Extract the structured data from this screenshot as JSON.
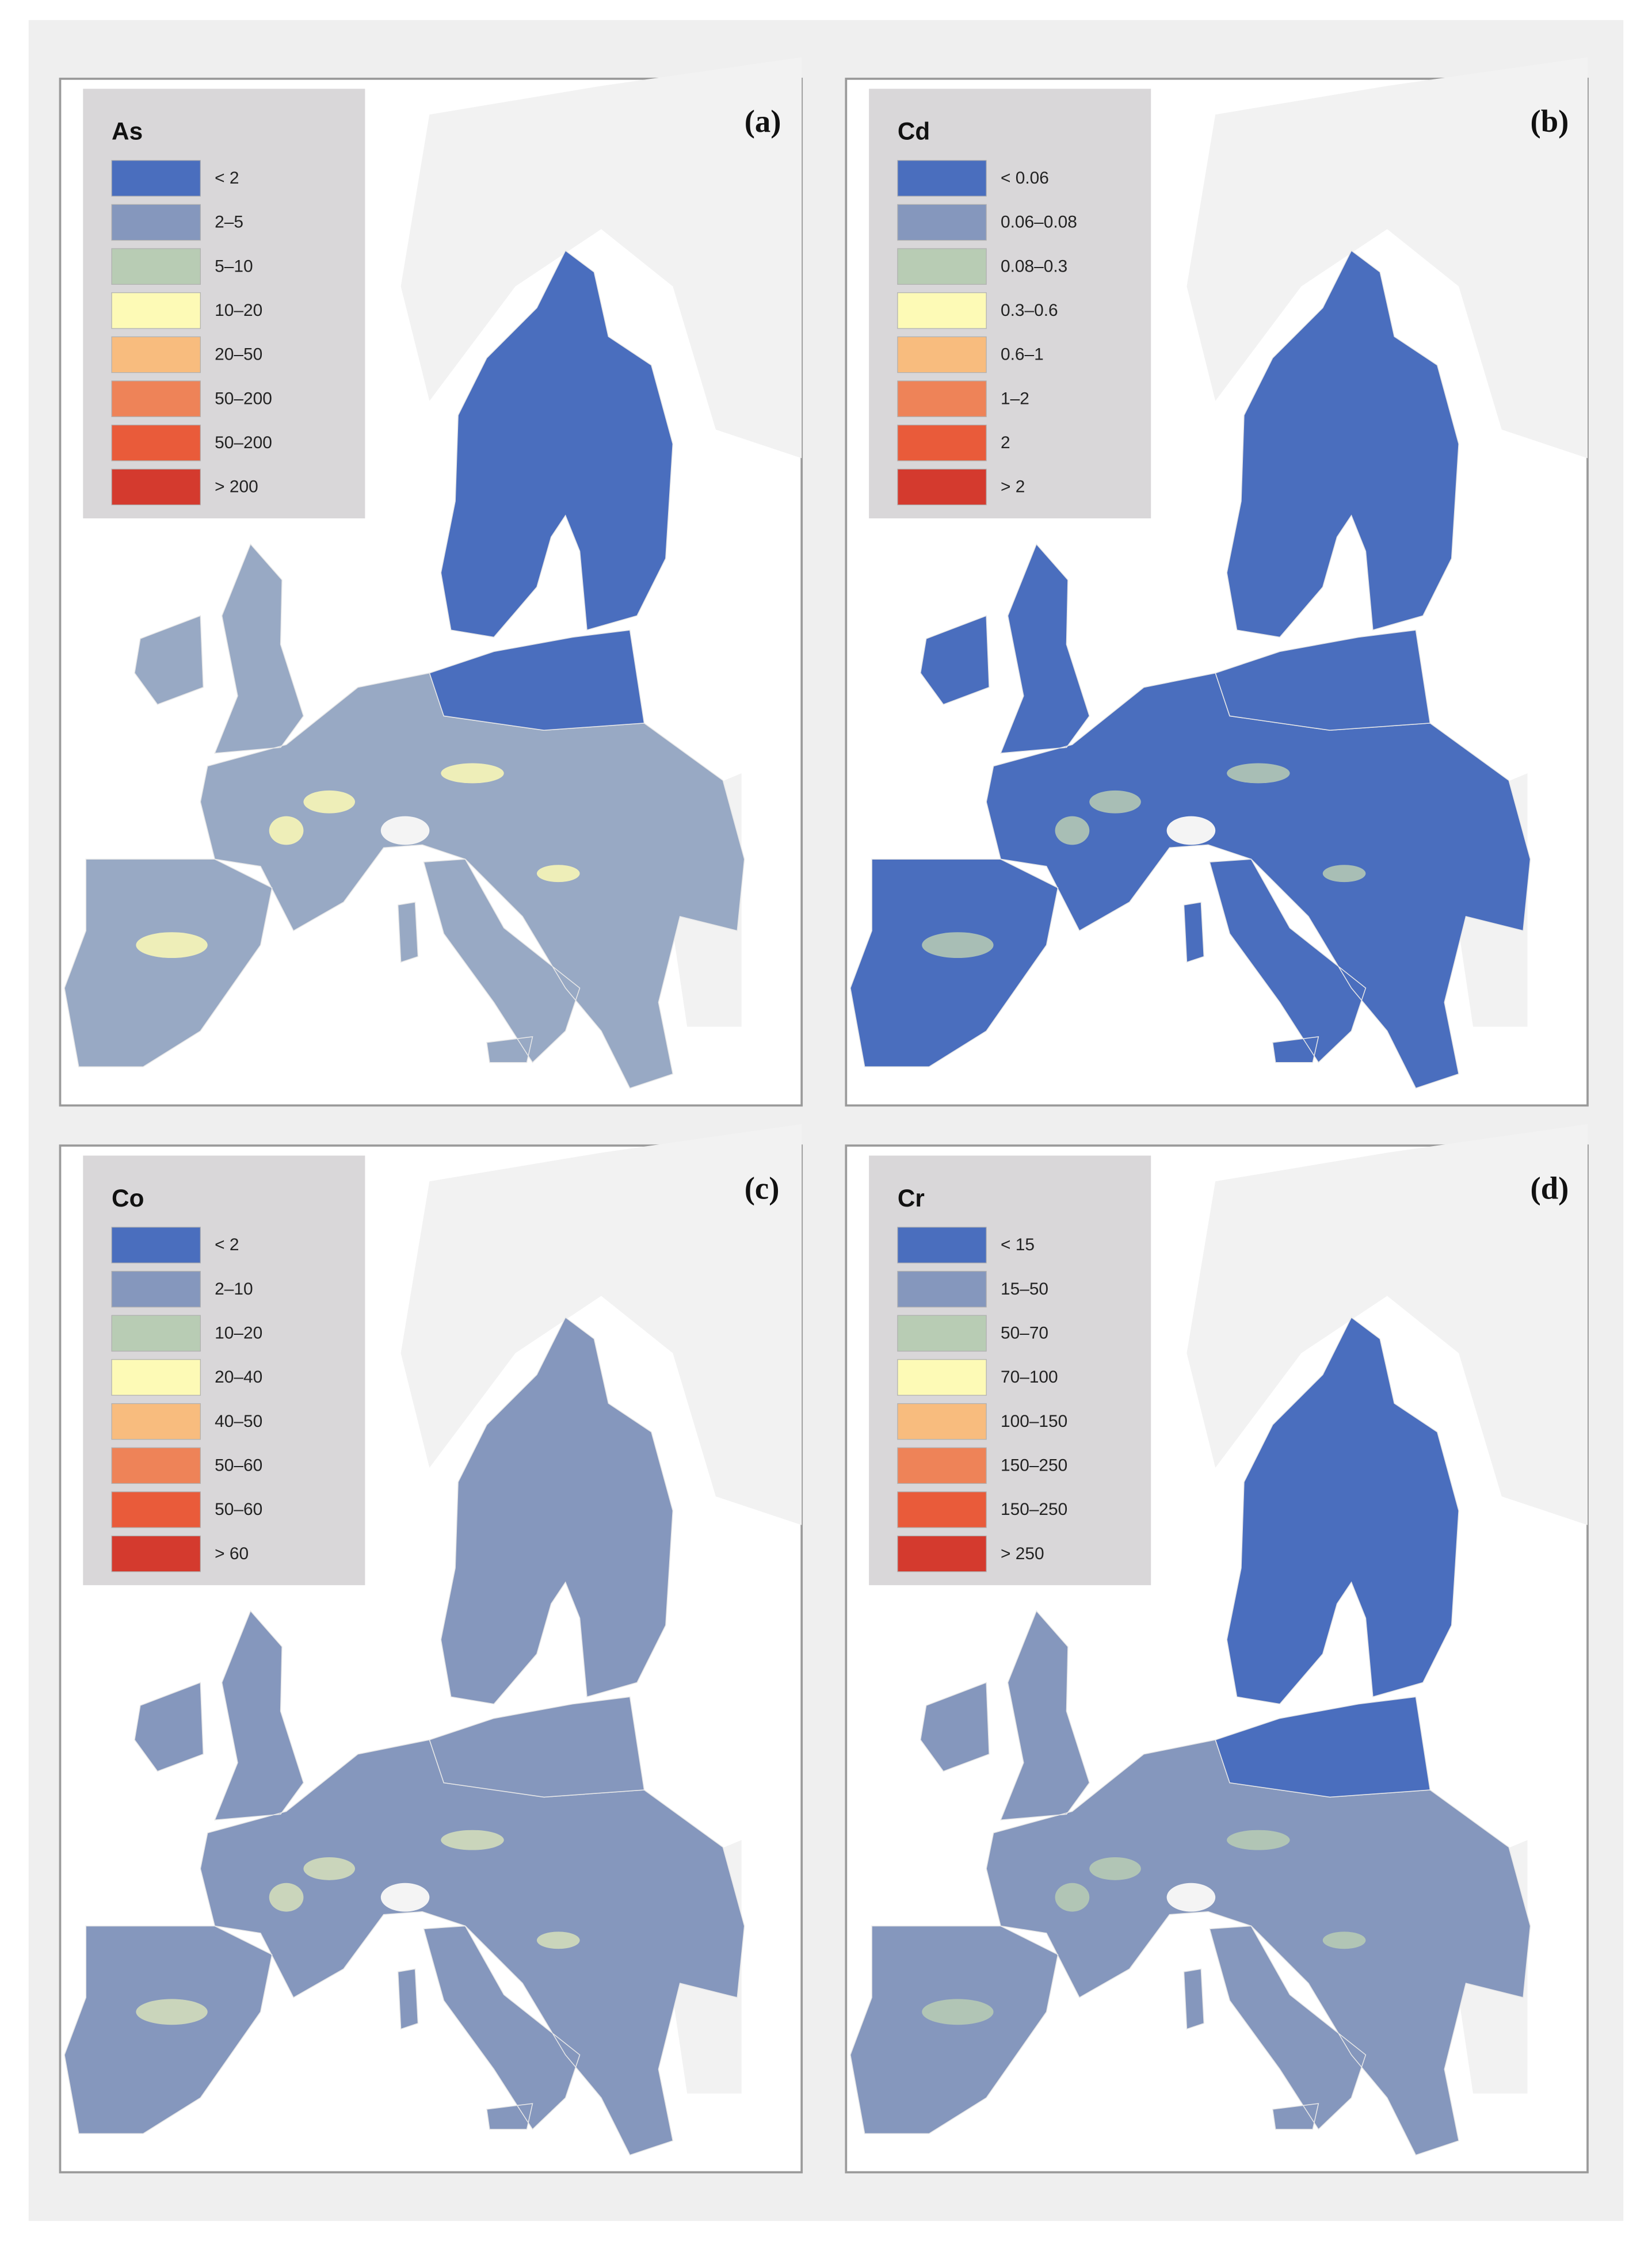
{
  "panels": [
    {
      "label": "(a)",
      "legend": {
        "title": "As",
        "items": [
          {
            "label": "< 2",
            "color": "#4a6ebe"
          },
          {
            "label": "2–5",
            "color": "#8597bd"
          },
          {
            "label": "5–10",
            "color": "#b8ccb4"
          },
          {
            "label": "10–20",
            "color": "#fdfab6"
          },
          {
            "label": "20–50",
            "color": "#f8bc7e"
          },
          {
            "label": "50–200",
            "color": "#ee8358"
          },
          {
            "label": "50–200",
            "color": "#e95b3a"
          },
          {
            "label": "> 200",
            "color": "#d43a2e"
          }
        ]
      }
    },
    {
      "label": "(b)",
      "legend": {
        "title": "Cd",
        "items": [
          {
            "label": "< 0.06",
            "color": "#4a6ebe"
          },
          {
            "label": "0.06–0.08",
            "color": "#8597bd"
          },
          {
            "label": "0.08–0.3",
            "color": "#b8ccb4"
          },
          {
            "label": "0.3–0.6",
            "color": "#fdfab6"
          },
          {
            "label": "0.6–1",
            "color": "#f8bc7e"
          },
          {
            "label": "1–2",
            "color": "#ee8358"
          },
          {
            "label": "2",
            "color": "#e95b3a"
          },
          {
            "label": "> 2",
            "color": "#d43a2e"
          }
        ]
      }
    },
    {
      "label": "(c)",
      "legend": {
        "title": "Co",
        "items": [
          {
            "label": "< 2",
            "color": "#4a6ebe"
          },
          {
            "label": "2–10",
            "color": "#8597bd"
          },
          {
            "label": "10–20",
            "color": "#b8ccb4"
          },
          {
            "label": "20–40",
            "color": "#fdfab6"
          },
          {
            "label": "40–50",
            "color": "#f8bc7e"
          },
          {
            "label": "50–60",
            "color": "#ee8358"
          },
          {
            "label": "50–60",
            "color": "#e95b3a"
          },
          {
            "label": "> 60",
            "color": "#d43a2e"
          }
        ]
      }
    },
    {
      "label": "(d)",
      "legend": {
        "title": "Cr",
        "items": [
          {
            "label": "< 15",
            "color": "#4a6ebe"
          },
          {
            "label": "15–50",
            "color": "#8597bd"
          },
          {
            "label": "50–70",
            "color": "#b8ccb4"
          },
          {
            "label": "70–100",
            "color": "#fdfab6"
          },
          {
            "label": "100–150",
            "color": "#f8bc7e"
          },
          {
            "label": "150–250",
            "color": "#ee8358"
          },
          {
            "label": "150–250",
            "color": "#e95b3a"
          },
          {
            "label": "> 250",
            "color": "#d43a2e"
          }
        ]
      }
    }
  ]
}
